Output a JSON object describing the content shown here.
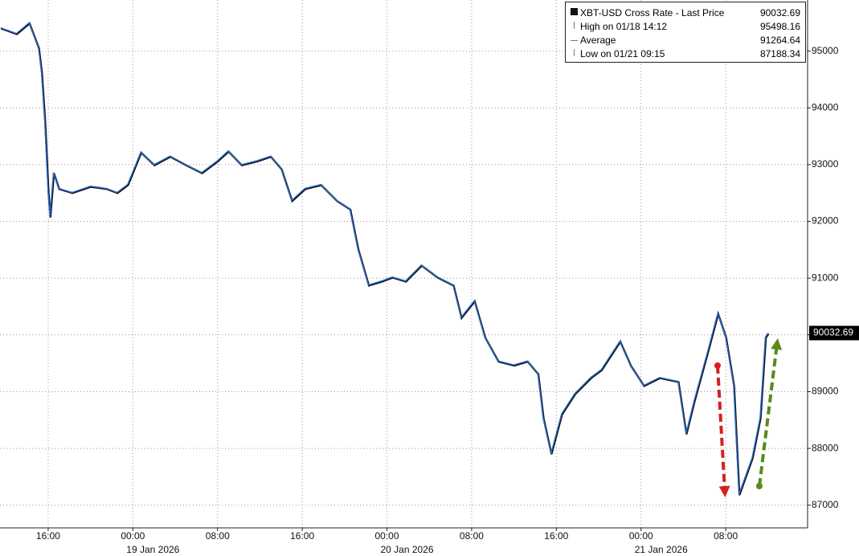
{
  "chart_data": {
    "type": "line",
    "series": [
      {
        "name": "XBT-USD Cross Rate - Last Price",
        "color": "#2a6bd1",
        "x": [
          "2026-01-18 11:30",
          "2026-01-18 13:00",
          "2026-01-18 14:12",
          "2026-01-18 15:05",
          "2026-01-18 15:22",
          "2026-01-18 15:40",
          "2026-01-18 16:00",
          "2026-01-18 16:10",
          "2026-01-18 16:30",
          "2026-01-18 17:00",
          "2026-01-18 18:15",
          "2026-01-18 20:00",
          "2026-01-18 21:30",
          "2026-01-18 22:30",
          "2026-01-18 23:30",
          "2026-01-19 00:45",
          "2026-01-19 02:00",
          "2026-01-19 03:30",
          "2026-01-19 05:00",
          "2026-01-19 06:30",
          "2026-01-19 08:00",
          "2026-01-19 09:00",
          "2026-01-19 10:15",
          "2026-01-19 11:45",
          "2026-01-19 13:00",
          "2026-01-19 14:00",
          "2026-01-19 15:00",
          "2026-01-19 16:15",
          "2026-01-19 17:45",
          "2026-01-19 19:15",
          "2026-01-19 20:30",
          "2026-01-19 21:15",
          "2026-01-19 22:15",
          "2026-01-19 23:30",
          "2026-01-20 00:30",
          "2026-01-20 01:45",
          "2026-01-20 03:15",
          "2026-01-20 04:45",
          "2026-01-20 06:15",
          "2026-01-20 07:00",
          "2026-01-20 08:15",
          "2026-01-20 09:15",
          "2026-01-20 10:30",
          "2026-01-20 12:00",
          "2026-01-20 13:15",
          "2026-01-20 14:15",
          "2026-01-20 14:45",
          "2026-01-20 15:30",
          "2026-01-20 16:30",
          "2026-01-20 17:45",
          "2026-01-20 19:15",
          "2026-01-20 20:15",
          "2026-01-20 22:00",
          "2026-01-20 23:00",
          "2026-01-21 00:15",
          "2026-01-21 01:45",
          "2026-01-21 03:30",
          "2026-01-21 04:15",
          "2026-01-21 05:00",
          "2026-01-21 06:15",
          "2026-01-21 07:15",
          "2026-01-21 08:00",
          "2026-01-21 08:45",
          "2026-01-21 09:15",
          "2026-01-21 10:30",
          "2026-01-21 11:15",
          "2026-01-21 11:45",
          "2026-01-21 12:00"
        ],
        "values": [
          95410,
          95310,
          95498.16,
          95060,
          94630,
          93780,
          92510,
          92080,
          92860,
          92580,
          92510,
          92620,
          92580,
          92510,
          92650,
          93220,
          93000,
          93150,
          93000,
          92860,
          93070,
          93240,
          93000,
          93070,
          93150,
          92930,
          92370,
          92580,
          92650,
          92370,
          92220,
          91520,
          90880,
          90950,
          91020,
          90950,
          91230,
          91020,
          90880,
          90310,
          90600,
          89960,
          89540,
          89470,
          89540,
          89320,
          88540,
          87910,
          88610,
          88970,
          89250,
          89390,
          89890,
          89470,
          89110,
          89250,
          89180,
          88260,
          88830,
          89680,
          90380,
          89960,
          89110,
          87188.34,
          87840,
          88540,
          89960,
          90032.69
        ]
      }
    ],
    "last_price": 90032.69,
    "stats": [
      {
        "label": "High on 01/18 14:12",
        "value": 95498.16
      },
      {
        "label": "Average",
        "value": 91264.64
      },
      {
        "label": "Low on 01/21 09:15",
        "value": 87188.34
      }
    ],
    "xlim": [
      "2026-01-18 11:27",
      "2026-01-21 15:44"
    ],
    "xticks": [
      {
        "value": "2026-01-18 16:00",
        "label": "16:00"
      },
      {
        "value": "2026-01-19 00:00",
        "label": "00:00"
      },
      {
        "value": "2026-01-19 08:00",
        "label": "08:00"
      },
      {
        "value": "2026-01-19 16:00",
        "label": "16:00"
      },
      {
        "value": "2026-01-20 00:00",
        "label": "00:00"
      },
      {
        "value": "2026-01-20 08:00",
        "label": "08:00"
      },
      {
        "value": "2026-01-20 16:00",
        "label": "16:00"
      },
      {
        "value": "2026-01-21 00:00",
        "label": "00:00"
      },
      {
        "value": "2026-01-21 08:00",
        "label": "08:00"
      }
    ],
    "date_ticks": [
      {
        "value": "2026-01-19 00:00",
        "label": "19 Jan 2026"
      },
      {
        "value": "2026-01-20 00:00",
        "label": "20 Jan 2026"
      },
      {
        "value": "2026-01-21 00:00",
        "label": "21 Jan 2026"
      }
    ],
    "ylim": [
      86600,
      95900
    ],
    "yticks": [
      87000,
      88000,
      89000,
      90000,
      91000,
      92000,
      93000,
      94000,
      95000
    ],
    "grid": true
  }
}
